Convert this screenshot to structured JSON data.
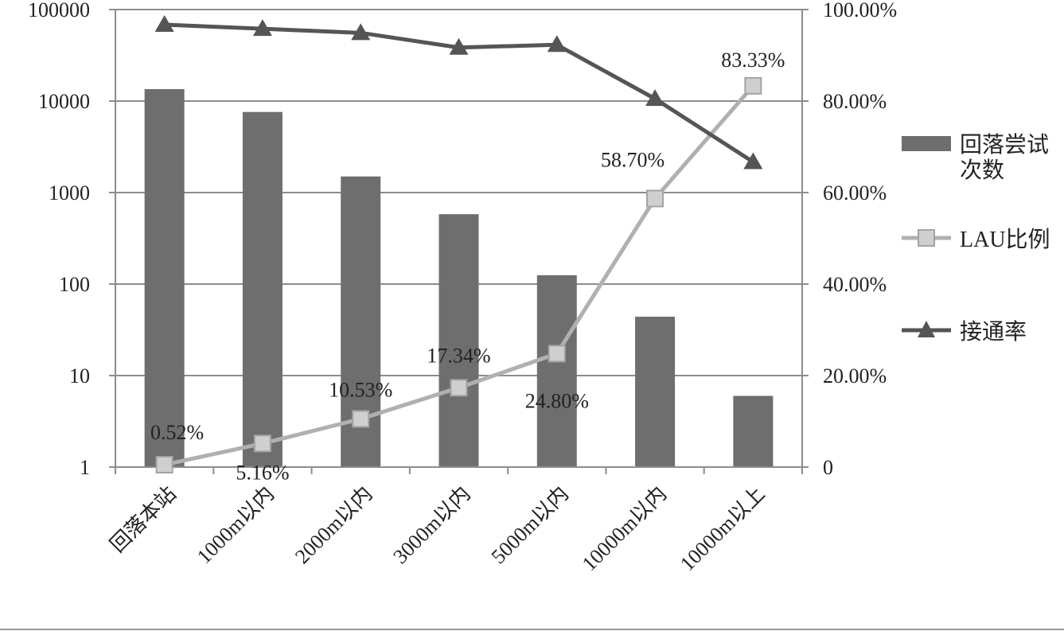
{
  "chart_data": {
    "type": "bar",
    "categories": [
      "回落本站",
      "1000m以内",
      "2000m以内",
      "3000m以内",
      "5000m以内",
      "10000m以内",
      "10000m以上"
    ],
    "left_axis": {
      "scale": "log",
      "range": [
        1,
        100000
      ],
      "tick_labels": [
        "1",
        "10",
        "100",
        "1000",
        "10000",
        "100000"
      ]
    },
    "right_axis": {
      "scale": "linear",
      "range": [
        0,
        1
      ],
      "tick_labels": [
        "0",
        "20.00%",
        "40.00%",
        "60.00%",
        "80.00%",
        "100.00%"
      ]
    },
    "grid": true,
    "legend_position": "right",
    "series": [
      {
        "name": "回落尝试次数",
        "legend_lines": [
          "回落尝试",
          "次数"
        ],
        "kind": "bar",
        "axis": "left",
        "color": "#6e6e6e",
        "values": [
          13500,
          7600,
          1500,
          580,
          125,
          44,
          6
        ]
      },
      {
        "name": "LAU比例",
        "kind": "line",
        "marker": "square",
        "axis": "right",
        "color": "#b0b0b0",
        "values": [
          0.0052,
          0.0516,
          0.1053,
          0.1734,
          0.248,
          0.587,
          0.8333
        ],
        "labels": [
          "0.52%",
          "5.16%",
          "10.53%",
          "17.34%",
          "24.80%",
          "58.70%",
          "83.33%"
        ]
      },
      {
        "name": "接通率",
        "kind": "line",
        "marker": "triangle",
        "axis": "right",
        "color": "#555555",
        "values": [
          0.967,
          0.958,
          0.949,
          0.917,
          0.923,
          0.805,
          0.667
        ]
      }
    ]
  }
}
